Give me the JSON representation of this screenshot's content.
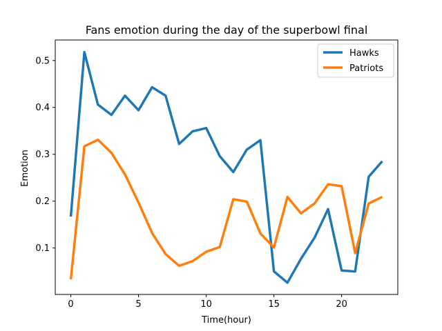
{
  "chart_data": {
    "type": "line",
    "title": "Fans emotion during the day of the superbowl final",
    "xlabel": "Time(hour)",
    "ylabel": "Emotion",
    "xlim": [
      -1.15,
      24.15
    ],
    "ylim": [
      0.0009,
      0.5438
    ],
    "xticks": [
      0,
      5,
      10,
      15,
      20
    ],
    "yticks": [
      0.1,
      0.2,
      0.3,
      0.4,
      0.5
    ],
    "xtick_labels": [
      "0",
      "5",
      "10",
      "15",
      "20"
    ],
    "ytick_labels": [
      "0.1",
      "0.2",
      "0.3",
      "0.4",
      "0.5"
    ],
    "grid": false,
    "legend_position": "top-right",
    "x": [
      0,
      1,
      2,
      3,
      4,
      5,
      6,
      7,
      8,
      9,
      10,
      11,
      12,
      13,
      14,
      15,
      16,
      17,
      18,
      19,
      20,
      21,
      22,
      23
    ],
    "series": [
      {
        "name": "Hawks",
        "color": "#1f77b4",
        "values": [
          0.167,
          0.518,
          0.406,
          0.384,
          0.425,
          0.394,
          0.443,
          0.425,
          0.322,
          0.349,
          0.356,
          0.296,
          0.262,
          0.31,
          0.33,
          0.05,
          0.026,
          0.077,
          0.122,
          0.183,
          0.052,
          0.05,
          0.252,
          0.285
        ]
      },
      {
        "name": "Patriots",
        "color": "#ff7f0e",
        "values": [
          0.033,
          0.317,
          0.331,
          0.303,
          0.257,
          0.197,
          0.132,
          0.087,
          0.062,
          0.072,
          0.092,
          0.102,
          0.204,
          0.199,
          0.131,
          0.101,
          0.209,
          0.174,
          0.195,
          0.236,
          0.232,
          0.089,
          0.195,
          0.209
        ]
      }
    ]
  }
}
